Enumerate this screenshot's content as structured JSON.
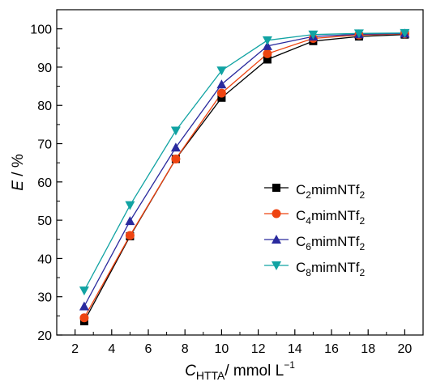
{
  "chart_data": {
    "type": "line",
    "xlabel": {
      "main": "C",
      "sub": "HTTA",
      "rest": "/ mmol L",
      "sup": "−1"
    },
    "ylabel": {
      "main": "E",
      "rest": " / %"
    },
    "x": [
      2.5,
      5,
      7.5,
      10,
      12.5,
      15,
      17.5,
      20
    ],
    "xlim": [
      1,
      21
    ],
    "ylim": [
      20,
      105
    ],
    "xticks": [
      2,
      4,
      6,
      8,
      10,
      12,
      14,
      16,
      18,
      20
    ],
    "yticks": [
      20,
      30,
      40,
      50,
      60,
      70,
      80,
      90,
      100
    ],
    "grid": false,
    "legend_position": "center-right",
    "series": [
      {
        "name": {
          "a": "C",
          "n": "2",
          "b": "mimNTf",
          "s": "2"
        },
        "color": "#000000",
        "marker": "square",
        "values": [
          23.6,
          45.8,
          66.0,
          82.0,
          92.0,
          96.8,
          98.0,
          98.5
        ]
      },
      {
        "name": {
          "a": "C",
          "n": "4",
          "b": "mimNTf",
          "s": "2"
        },
        "color": "#ee4411",
        "marker": "circle",
        "values": [
          24.5,
          46.0,
          66.0,
          83.2,
          93.5,
          97.5,
          98.4,
          98.7
        ]
      },
      {
        "name": {
          "a": "C",
          "n": "6",
          "b": "mimNTf",
          "s": "2"
        },
        "color": "#2a2a9e",
        "marker": "triangle-up",
        "values": [
          27.5,
          49.8,
          69.0,
          85.5,
          95.5,
          98.0,
          98.6,
          98.8
        ]
      },
      {
        "name": {
          "a": "C",
          "n": "8",
          "b": "mimNTf",
          "s": "2"
        },
        "color": "#11a3a3",
        "marker": "triangle-down",
        "values": [
          31.6,
          53.9,
          73.4,
          89.1,
          97.0,
          98.5,
          98.8,
          98.9
        ]
      }
    ]
  }
}
